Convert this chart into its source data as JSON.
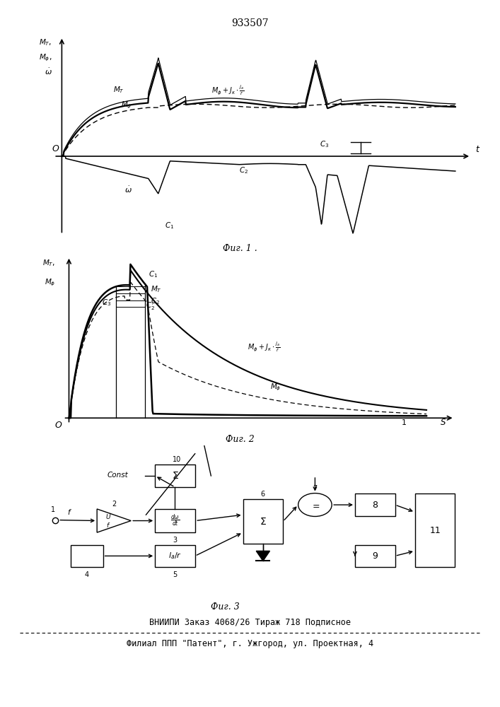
{
  "title": "933507",
  "fig1_caption": "Фиг. 1 .",
  "fig2_caption": "Фиг. 2",
  "fig3_caption": "Фиг. 3",
  "footer_line1": "ВНИИПИ Заказ 4068/26 Тираж 718 Подписное",
  "footer_line2": "Филиал ППП \"Патент\", г. Ужгород, ул. Проектная, 4",
  "bg_color": "#ffffff",
  "line_color": "#000000"
}
